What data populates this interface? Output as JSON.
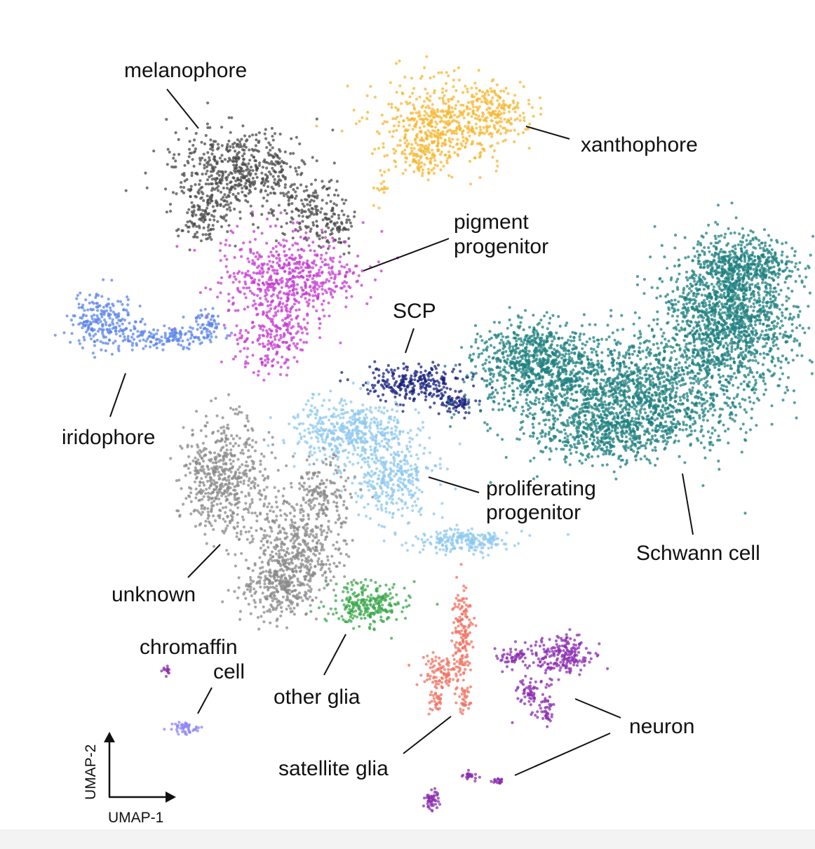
{
  "chart_data": {
    "type": "scatter",
    "xlabel": "UMAP-1",
    "ylabel": "UMAP-2",
    "clusters": [
      {
        "name": "melanophore",
        "label_lines": [
          "melanophore"
        ],
        "color": "#4a4a4a"
      },
      {
        "name": "xanthophore",
        "label_lines": [
          "xanthophore"
        ],
        "color": "#f5b731"
      },
      {
        "name": "pigment progenitor",
        "label_lines": [
          "pigment",
          "progenitor"
        ],
        "color": "#c53ad2"
      },
      {
        "name": "iridophore",
        "label_lines": [
          "iridophore"
        ],
        "color": "#5b86ea"
      },
      {
        "name": "SCP",
        "label_lines": [
          "SCP"
        ],
        "color": "#17207d"
      },
      {
        "name": "Schwann cell",
        "label_lines": [
          "Schwann cell"
        ],
        "color": "#1f8080"
      },
      {
        "name": "proliferating progenitor",
        "label_lines": [
          "proliferating",
          "progenitor"
        ],
        "color": "#8ec8ef"
      },
      {
        "name": "unknown",
        "label_lines": [
          "unknown"
        ],
        "color": "#8a8a8a"
      },
      {
        "name": "other glia",
        "label_lines": [
          "other glia"
        ],
        "color": "#3aa84a"
      },
      {
        "name": "chromaffin cell",
        "label_lines": [
          "chromaffin",
          "cell"
        ],
        "color": "#8f86f5"
      },
      {
        "name": "satellite glia",
        "label_lines": [
          "satellite glia"
        ],
        "color": "#f07260"
      },
      {
        "name": "neuron",
        "label_lines": [
          "neuron"
        ],
        "color": "#8b2db0"
      }
    ]
  }
}
